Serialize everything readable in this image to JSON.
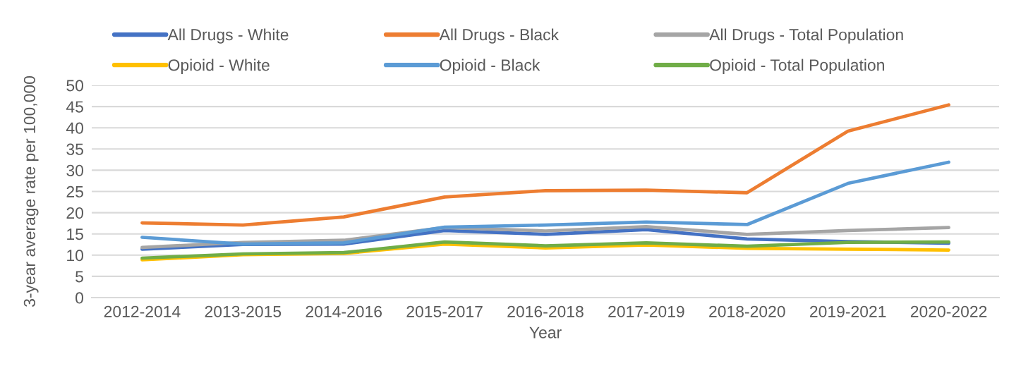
{
  "chart_data": {
    "type": "line",
    "xlabel": "Year",
    "ylabel": "3-year average rate per 100,000",
    "categories": [
      "2012-2014",
      "2013-2015",
      "2014-2016",
      "2015-2017",
      "2016-2018",
      "2017-2019",
      "2018-2020",
      "2019-2021",
      "2020-2022"
    ],
    "series": [
      {
        "name": "All Drugs - White",
        "color": "#4472c4",
        "values": [
          11.4,
          12.5,
          12.6,
          15.8,
          14.9,
          16.0,
          13.8,
          13.2,
          12.8
        ]
      },
      {
        "name": "All Drugs - Black",
        "color": "#ed7d31",
        "values": [
          17.6,
          17.1,
          19.0,
          23.7,
          25.2,
          25.3,
          24.7,
          39.2,
          45.4
        ]
      },
      {
        "name": "All Drugs - Total Population",
        "color": "#a5a5a5",
        "values": [
          11.8,
          13.0,
          13.5,
          16.5,
          15.7,
          16.7,
          14.9,
          15.8,
          16.5
        ]
      },
      {
        "name": "Opioid - White",
        "color": "#ffc000",
        "values": [
          8.9,
          10.1,
          10.4,
          12.6,
          11.7,
          12.4,
          11.6,
          11.4,
          11.2
        ]
      },
      {
        "name": "Opioid - Black",
        "color": "#5b9bd5",
        "values": [
          14.2,
          12.6,
          12.9,
          16.6,
          17.1,
          17.8,
          17.2,
          26.9,
          31.9
        ]
      },
      {
        "name": "Opioid - Total Population",
        "color": "#70ad47",
        "values": [
          9.3,
          10.3,
          10.6,
          13.1,
          12.2,
          12.9,
          12.1,
          13.0,
          13.1
        ]
      }
    ],
    "ylim": [
      0,
      50
    ],
    "yticks": [
      0,
      5,
      10,
      15,
      20,
      25,
      30,
      35,
      40,
      45,
      50
    ],
    "grid": "y",
    "legend": "top"
  }
}
